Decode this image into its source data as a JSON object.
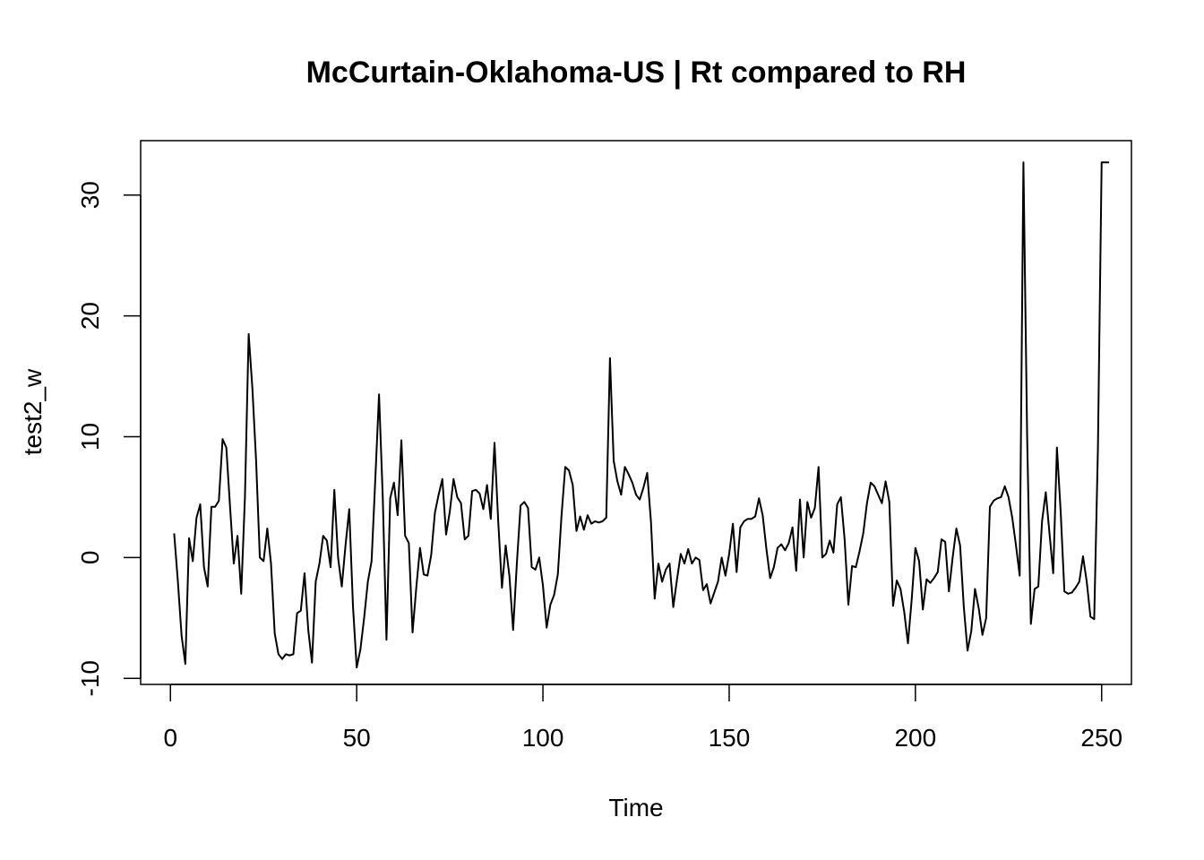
{
  "chart_data": {
    "type": "line",
    "title": "McCurtain-Oklahoma-US | Rt compared to RH",
    "xlabel": "Time",
    "ylabel": "test2_w",
    "xlim": [
      -8,
      258
    ],
    "ylim": [
      -10.5,
      34.5
    ],
    "x_ticks": [
      0,
      50,
      100,
      150,
      200,
      250
    ],
    "y_ticks": [
      -10,
      0,
      10,
      20,
      30
    ],
    "grid": false,
    "legend": "none",
    "line_color": "#000000",
    "x_start": 1,
    "values": [
      2.0,
      -2.0,
      -6.5,
      -8.8,
      1.6,
      -0.3,
      3.3,
      4.4,
      -0.8,
      -2.4,
      4.2,
      4.2,
      4.7,
      9.8,
      9.1,
      4.2,
      -0.5,
      1.8,
      -3.0,
      5.0,
      18.5,
      14.0,
      8.0,
      0.0,
      -0.3,
      2.4,
      -0.5,
      -6.3,
      -8.0,
      -8.4,
      -8.0,
      -8.1,
      -8.0,
      -4.6,
      -4.4,
      -1.3,
      -6.0,
      -8.7,
      -2.0,
      -0.5,
      1.8,
      1.4,
      -0.8,
      5.6,
      0.0,
      -2.4,
      1.0,
      4.0,
      -4.0,
      -9.1,
      -7.6,
      -5.0,
      -2.0,
      -0.3,
      6.5,
      13.5,
      5.0,
      -6.8,
      4.9,
      6.2,
      3.5,
      9.7,
      1.8,
      1.2,
      -6.2,
      -2.5,
      0.8,
      -1.4,
      -1.5,
      0.2,
      3.7,
      5.2,
      6.5,
      1.9,
      3.8,
      6.5,
      5.0,
      4.5,
      1.5,
      1.8,
      5.5,
      5.6,
      5.3,
      4.0,
      6.0,
      3.2,
      9.5,
      3.0,
      -2.5,
      1.0,
      -1.5,
      -6.0,
      -0.5,
      4.3,
      4.6,
      4.1,
      -0.8,
      -1.0,
      0.0,
      -2.3,
      -5.8,
      -3.9,
      -3.1,
      -1.4,
      3.5,
      7.5,
      7.2,
      6.0,
      2.2,
      3.4,
      2.3,
      3.5,
      2.8,
      3.0,
      2.9,
      3.0,
      3.3,
      16.5,
      8.0,
      6.3,
      5.2,
      7.5,
      6.9,
      6.2,
      5.2,
      4.8,
      5.8,
      7.0,
      3.0,
      -3.4,
      -0.5,
      -2.0,
      -1.0,
      -0.5,
      -4.1,
      -1.8,
      0.3,
      -0.5,
      0.7,
      -0.5,
      0.0,
      -0.2,
      -2.7,
      -2.2,
      -3.8,
      -2.9,
      -2.0,
      0.0,
      -1.5,
      0.3,
      2.8,
      -1.2,
      2.5,
      3.0,
      3.2,
      3.2,
      3.4,
      4.9,
      3.5,
      0.7,
      -1.7,
      -0.8,
      0.8,
      1.1,
      0.6,
      1.2,
      2.5,
      -1.1,
      4.8,
      0.0,
      4.6,
      3.3,
      4.1,
      7.5,
      0.0,
      0.3,
      1.4,
      0.4,
      4.4,
      5.0,
      1.5,
      -3.9,
      -0.7,
      -0.8,
      0.5,
      2.0,
      4.5,
      6.2,
      5.9,
      5.2,
      4.5,
      6.3,
      4.6,
      -4.0,
      -1.9,
      -2.6,
      -4.5,
      -7.1,
      -3.5,
      0.8,
      -0.3,
      -4.3,
      -1.8,
      -2.1,
      -1.7,
      -1.2,
      1.5,
      1.3,
      -2.8,
      0.0,
      2.4,
      1.0,
      -4.1,
      -7.7,
      -6.1,
      -2.6,
      -4.2,
      -6.4,
      -5.0,
      4.2,
      4.7,
      4.9,
      5.0,
      5.9,
      5.0,
      3.3,
      1.0,
      -1.5,
      32.7,
      10.0,
      -5.5,
      -2.6,
      -2.4,
      3.0,
      5.4,
      2.0,
      -1.3,
      9.1,
      3.8,
      -2.8,
      -3.0,
      -2.9,
      -2.5,
      -2.0,
      0.1,
      -2.0,
      -4.9,
      -5.1,
      9.0,
      32.7,
      32.7,
      32.7
    ]
  }
}
